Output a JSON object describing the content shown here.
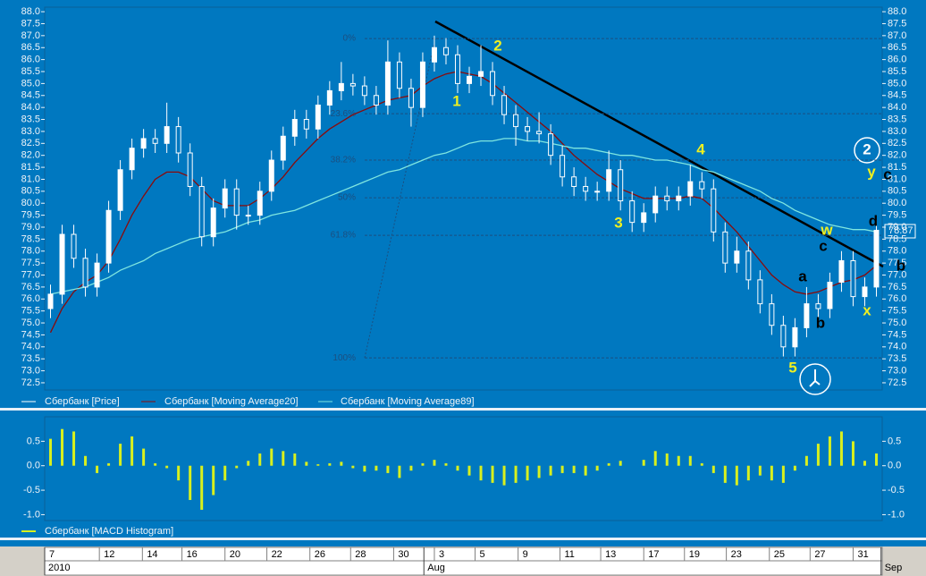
{
  "chart_data": [
    {
      "type": "candlestick",
      "name": "Сбербанк [Price]",
      "color": "#ffffff",
      "open": [
        75.6,
        76.2,
        78.7,
        77.7,
        76.5,
        77.5,
        79.7,
        81.4,
        82.3,
        82.7,
        82.5,
        83.2,
        82.1,
        80.7,
        78.6,
        79.8,
        80.6,
        79.5,
        79.5,
        80.5,
        81.8,
        82.8,
        83.5,
        83.1,
        84.1,
        84.7,
        85,
        84.9,
        84.5,
        84.1,
        85.9,
        84.8,
        84,
        85.9,
        86.5,
        86.2,
        85,
        85.3,
        85.5,
        84.5,
        83.7,
        83.2,
        83,
        82.9,
        82,
        81.1,
        80.7,
        80.5,
        80.5,
        81.4,
        80.1,
        79.2,
        79.6,
        80.3,
        80.1,
        80.3,
        80.9,
        80.6,
        78.8,
        77.5,
        78,
        76.8,
        75.8,
        74.9,
        74,
        74.8,
        75.8,
        75.6,
        76.7,
        77.6,
        76.1,
        76.5
      ],
      "high": [
        76.6,
        79.1,
        79.1,
        78.1,
        77.9,
        80.1,
        81.8,
        82.7,
        83.1,
        83.1,
        84.2,
        83.6,
        82.5,
        81.1,
        80.2,
        81.0,
        81.0,
        79.9,
        80.9,
        82.2,
        83.2,
        83.9,
        83.9,
        84.5,
        85.1,
        85.9,
        85.4,
        85.3,
        84.9,
        86.8,
        86.3,
        85.2,
        86.3,
        87.0,
        86.9,
        86.6,
        85.7,
        86.6,
        85.9,
        84.9,
        84.1,
        83.6,
        83.8,
        83.3,
        82.4,
        81.5,
        81.1,
        80.9,
        82.2,
        81.8,
        80.5,
        80.0,
        80.7,
        80.7,
        80.7,
        81.6,
        81.3,
        81.0,
        79.2,
        78.6,
        78.4,
        77.2,
        76.2,
        75.3,
        75.2,
        76.5,
        76.2,
        77.1,
        78.0,
        78.0,
        76.9,
        79.3
      ],
      "low": [
        75.2,
        75.8,
        77.3,
        76.1,
        76.1,
        77.1,
        79.3,
        81.0,
        81.9,
        82.1,
        82.1,
        81.7,
        80.3,
        78.2,
        78.2,
        79.4,
        78.9,
        79.1,
        79.1,
        80.1,
        81.4,
        82.4,
        82.7,
        82.7,
        83.7,
        84.3,
        84.5,
        84.1,
        83.7,
        83.7,
        84.4,
        83.2,
        83.6,
        85.5,
        85.8,
        84.6,
        84.6,
        84.9,
        84.1,
        83.3,
        82.4,
        82.6,
        82.5,
        81.6,
        80.7,
        80.3,
        80.1,
        80.1,
        80.1,
        79.7,
        78.8,
        78.8,
        79.2,
        79.7,
        79.7,
        79.9,
        80.2,
        78.4,
        77.1,
        77.1,
        76.4,
        75.4,
        74.5,
        73.6,
        73.6,
        74.4,
        75.2,
        75.2,
        76.3,
        75.7,
        75.7,
        76.1
      ],
      "close": [
        76.2,
        78.7,
        77.7,
        76.5,
        77.5,
        79.7,
        81.4,
        82.3,
        82.7,
        82.5,
        83.2,
        82.1,
        80.7,
        78.6,
        79.8,
        80.6,
        79.5,
        79.5,
        80.5,
        81.8,
        82.8,
        83.5,
        83.1,
        84.1,
        84.7,
        85,
        84.9,
        84.5,
        84.1,
        85.9,
        84.8,
        84,
        85.9,
        86.5,
        86.2,
        85,
        85.3,
        85.5,
        84.5,
        83.7,
        83.2,
        83,
        82.9,
        82,
        81.1,
        80.7,
        80.5,
        80.5,
        81.4,
        80.1,
        79.2,
        79.6,
        80.3,
        80.1,
        80.3,
        80.9,
        80.6,
        78.8,
        77.5,
        78,
        76.8,
        75.8,
        74.9,
        74,
        74.8,
        75.8,
        75.6,
        76.7,
        77.6,
        76.1,
        76.5,
        78.87
      ],
      "series": [
        {
          "name": "Сбербанк [Moving Average20]",
          "color": "#8b0a0a",
          "values": [
            74.6,
            75.6,
            76.3,
            76.7,
            77.0,
            77.6,
            78.5,
            79.5,
            80.3,
            81.0,
            81.3,
            81.3,
            81.1,
            80.6,
            80.1,
            79.9,
            79.9,
            79.9,
            80.2,
            80.6,
            81.1,
            81.7,
            82.2,
            82.7,
            83.1,
            83.4,
            83.7,
            83.9,
            84.1,
            84.3,
            84.4,
            84.5,
            84.9,
            85.2,
            85.4,
            85.5,
            85.4,
            85.3,
            85.0,
            84.6,
            84.2,
            83.8,
            83.4,
            83.0,
            82.5,
            82.0,
            81.6,
            81.2,
            80.9,
            80.6,
            80.4,
            80.2,
            80.2,
            80.2,
            80.2,
            80.3,
            80.2,
            79.8,
            79.3,
            78.8,
            78.2,
            77.6,
            77.0,
            76.6,
            76.3,
            76.2,
            76.3,
            76.5,
            76.7,
            76.8,
            77.0,
            77.4
          ]
        },
        {
          "name": "Сбербанк [Moving Average89]",
          "color": "#7fe6e0",
          "values": [
            76.2,
            76.3,
            76.4,
            76.5,
            76.7,
            76.9,
            77.2,
            77.4,
            77.6,
            77.9,
            78.1,
            78.3,
            78.5,
            78.6,
            78.7,
            78.8,
            79.0,
            79.2,
            79.3,
            79.5,
            79.6,
            79.7,
            79.9,
            80.1,
            80.3,
            80.5,
            80.7,
            80.9,
            81.1,
            81.3,
            81.4,
            81.6,
            81.8,
            82.0,
            82.1,
            82.3,
            82.5,
            82.6,
            82.6,
            82.7,
            82.7,
            82.6,
            82.6,
            82.5,
            82.4,
            82.3,
            82.3,
            82.2,
            82.1,
            82.0,
            82.0,
            81.9,
            81.8,
            81.8,
            81.7,
            81.6,
            81.4,
            81.3,
            81.1,
            80.9,
            80.7,
            80.5,
            80.2,
            80.0,
            79.7,
            79.5,
            79.3,
            79.1,
            79.0,
            78.9,
            78.9,
            78.8
          ]
        }
      ],
      "ylim": [
        72.2,
        88.19
      ],
      "yticks": [
        72.5,
        {
          "value": 73,
          "label": "73.0"
        },
        73.5,
        {
          "value": 74,
          "label": "74.0"
        },
        74.5,
        {
          "value": 75,
          "label": "75.0"
        },
        75.5,
        {
          "value": 76,
          "label": "76.0"
        },
        76.5,
        {
          "value": 77,
          "label": "77.0"
        },
        77.5,
        {
          "value": 78,
          "label": "78.0"
        },
        78.5,
        {
          "value": 79,
          "label": "79.0"
        },
        79.5,
        {
          "value": 80,
          "label": "80.0"
        },
        80.5,
        {
          "value": 81,
          "label": "81.0"
        },
        81.5,
        {
          "value": 82,
          "label": "82.0"
        },
        82.5,
        {
          "value": 83,
          "label": "83.0"
        },
        83.5,
        {
          "value": 84,
          "label": "84.0"
        },
        84.5,
        {
          "value": 85,
          "label": "85.0"
        },
        85.5,
        {
          "value": 86,
          "label": "86.0"
        },
        86.5,
        {
          "value": 87,
          "label": "87.0"
        },
        87.5,
        {
          "value": 88,
          "label": "88.0"
        }
      ],
      "fib_levels": [
        {
          "label": "0%",
          "value": 86.88
        },
        {
          "label": "23.6%",
          "value": 83.74
        },
        {
          "label": "38.2%",
          "value": 81.8
        },
        {
          "label": "50%",
          "value": 80.23
        },
        {
          "label": "61.8%",
          "value": 78.66
        },
        {
          "label": "100%",
          "value": 73.54
        }
      ],
      "annotations": [
        {
          "text": "1",
          "color": "#f0f020"
        },
        {
          "text": "2",
          "color": "#f0f020"
        },
        {
          "text": "3",
          "color": "#f0f020"
        },
        {
          "text": "4",
          "color": "#f0f020"
        },
        {
          "text": "5",
          "color": "#f0f020"
        },
        {
          "text": "w",
          "color": "#f0f020"
        },
        {
          "text": "x",
          "color": "#f0f020"
        },
        {
          "text": "y",
          "color": "#f0f020"
        },
        {
          "text": "a",
          "color": "#000000"
        },
        {
          "text": "b",
          "color": "#000000"
        },
        {
          "text": "c",
          "color": "#000000"
        },
        {
          "text": "d",
          "color": "#000000"
        },
        {
          "text": "c",
          "color": "#000000"
        },
        {
          "text": "b",
          "color": "#000000"
        },
        {
          "text": "2",
          "color": "#ffffff"
        }
      ]
    },
    {
      "type": "bar",
      "series": [
        {
          "name": "Сбербанк [MACD Histogram]",
          "color": "#d8f01e",
          "values": [
            0.55,
            0.75,
            0.7,
            0.2,
            -0.15,
            0.05,
            0.45,
            0.6,
            0.35,
            0.05,
            -0.05,
            -0.3,
            -0.7,
            -0.9,
            -0.6,
            -0.3,
            -0.05,
            0.1,
            0.25,
            0.35,
            0.3,
            0.25,
            0.08,
            0.03,
            0.05,
            0.08,
            -0.05,
            -0.12,
            -0.1,
            -0.15,
            -0.25,
            -0.1,
            0.05,
            0.12,
            0.05,
            -0.1,
            -0.2,
            -0.3,
            -0.35,
            -0.4,
            -0.35,
            -0.3,
            -0.25,
            -0.2,
            -0.15,
            -0.15,
            -0.2,
            -0.1,
            0.05,
            0.1,
            0.0,
            0.12,
            0.3,
            0.25,
            0.2,
            0.2,
            0.05,
            -0.15,
            -0.35,
            -0.4,
            -0.3,
            -0.2,
            -0.3,
            -0.35,
            -0.1,
            0.2,
            0.45,
            0.6,
            0.7,
            0.5,
            0.1,
            0.25
          ]
        }
      ],
      "ylim": [
        -1.12,
        1.0
      ],
      "yticks": [
        0.5,
        {
          "value": 0,
          "label": "0.0"
        },
        -0.5,
        {
          "value": -1,
          "label": "-1.0"
        }
      ]
    }
  ],
  "x_axis": {
    "xlim": [
      0,
      72
    ],
    "xticks": [
      {
        "value": 0,
        "label": "7"
      },
      {
        "value": 4.7,
        "label": "12"
      },
      {
        "value": 8.4,
        "label": "14"
      },
      {
        "value": 11.8,
        "label": "16"
      },
      {
        "value": 15.5,
        "label": "20"
      },
      {
        "value": 19.1,
        "label": "22"
      },
      {
        "value": 22.8,
        "label": "26"
      },
      {
        "value": 26.3,
        "label": "28"
      },
      {
        "value": 30,
        "label": "30"
      },
      {
        "value": 33.5,
        "label": "3"
      },
      {
        "value": 37,
        "label": "5"
      },
      {
        "value": 40.7,
        "label": "9"
      },
      {
        "value": 44.3,
        "label": "11"
      },
      {
        "value": 47.8,
        "label": "13"
      },
      {
        "value": 51.5,
        "label": "17"
      },
      {
        "value": 55,
        "label": "19"
      },
      {
        "value": 58.6,
        "label": "23"
      },
      {
        "value": 62.3,
        "label": "25"
      },
      {
        "value": 65.8,
        "label": "27"
      },
      {
        "value": 69.5,
        "label": "31"
      }
    ],
    "periods": [
      {
        "value": 0,
        "label": "2010"
      },
      {
        "value": 32.6,
        "label": "Aug"
      },
      {
        "value": 71.9,
        "label": "Sep"
      }
    ]
  }
}
